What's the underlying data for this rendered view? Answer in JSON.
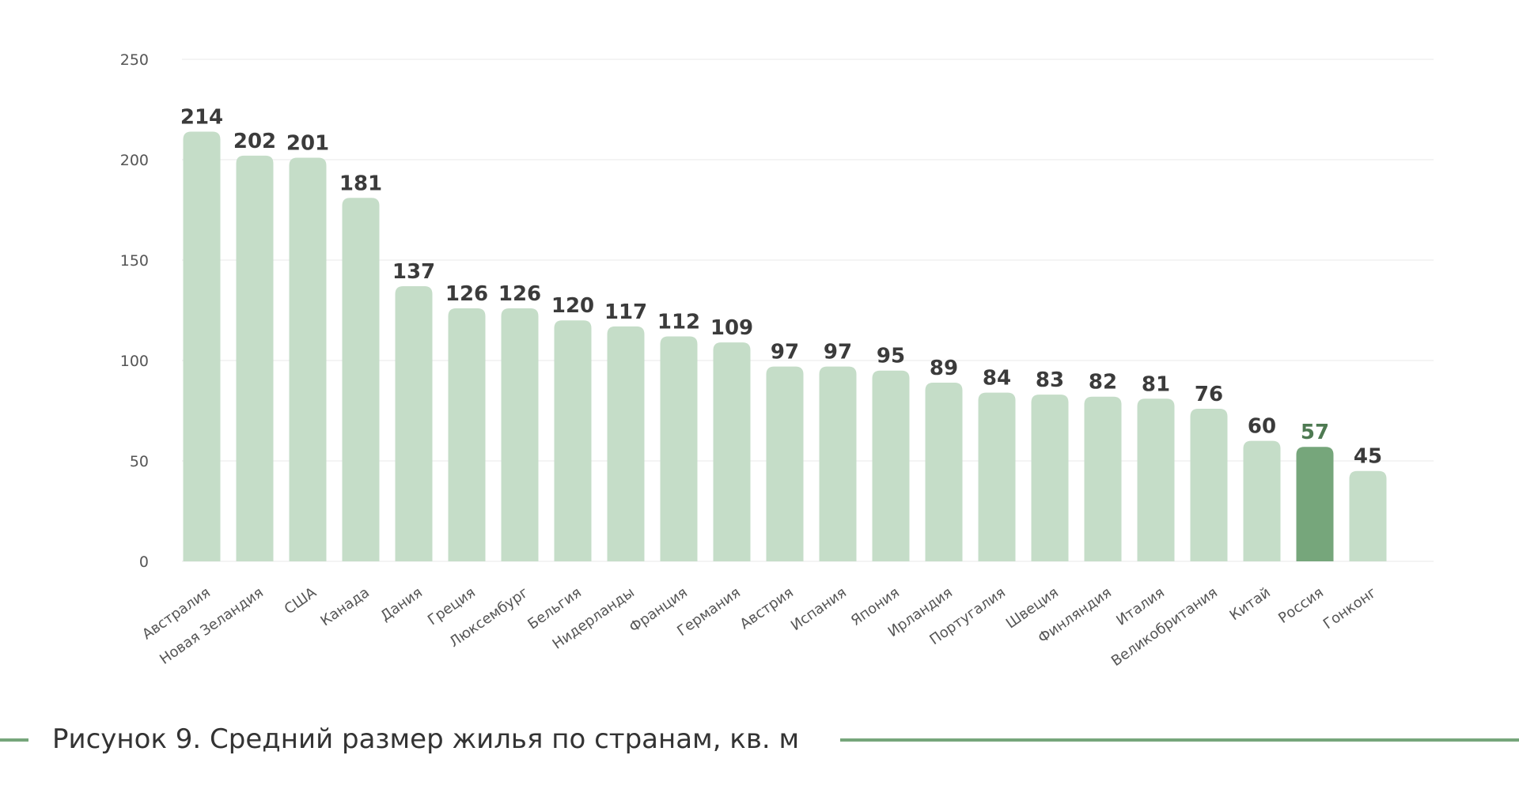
{
  "caption": "Рисунок 9. Средний размер жилья по странам, кв. м",
  "colors": {
    "bar": "#c5ddc8",
    "bar_highlight": "#76a67b",
    "label": "#3b3b3b",
    "label_highlight": "#4e7a52",
    "accent_line": "#76a67b"
  },
  "chart_data": {
    "type": "bar",
    "title": "",
    "xlabel": "",
    "ylabel": "",
    "ylim": [
      0,
      250
    ],
    "yticks": [
      0,
      50,
      100,
      150,
      200,
      250
    ],
    "grid": true,
    "highlight_category": "Россия",
    "categories": [
      "Австралия",
      "Новая Зеландия",
      "США",
      "Канада",
      "Дания",
      "Греция",
      "Люксембург",
      "Бельгия",
      "Нидерланды",
      "Франция",
      "Германия",
      "Австрия",
      "Испания",
      "Япония",
      "Ирландия",
      "Португалия",
      "Швеция",
      "Финляндия",
      "Италия",
      "Великобритания",
      "Китай",
      "Россия",
      "Гонконг"
    ],
    "values": [
      214,
      202,
      201,
      181,
      137,
      126,
      126,
      120,
      117,
      112,
      109,
      97,
      97,
      95,
      89,
      84,
      83,
      82,
      81,
      76,
      60,
      57,
      45
    ]
  }
}
